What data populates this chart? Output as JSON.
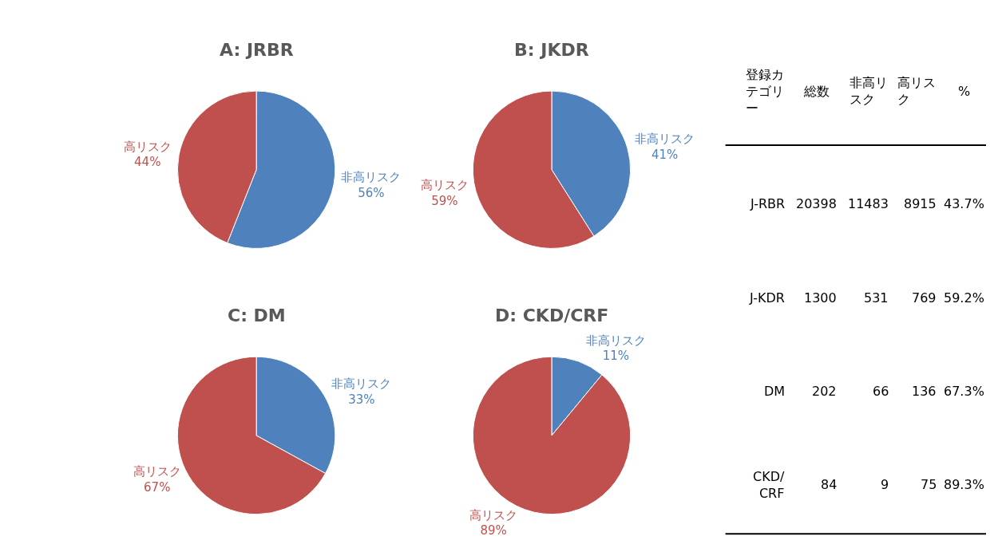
{
  "chart_data": [
    {
      "type": "pie",
      "title": "A: JRBR",
      "categories": [
        "非高リスク",
        "高リスク"
      ],
      "values": [
        56,
        44
      ],
      "value_labels": [
        "56%",
        "44%"
      ],
      "colors": [
        "#4f81bd",
        "#c0504d"
      ]
    },
    {
      "type": "pie",
      "title": "B: JKDR",
      "categories": [
        "非高リスク",
        "高リスク"
      ],
      "values": [
        41,
        59
      ],
      "value_labels": [
        "41%",
        "59%"
      ],
      "colors": [
        "#4f81bd",
        "#c0504d"
      ]
    },
    {
      "type": "pie",
      "title": "C: DM",
      "categories": [
        "非高リスク",
        "高リスク"
      ],
      "values": [
        33,
        67
      ],
      "value_labels": [
        "33%",
        "67%"
      ],
      "colors": [
        "#4f81bd",
        "#c0504d"
      ]
    },
    {
      "type": "pie",
      "title": "D: CKD/CRF",
      "categories": [
        "非高リスク",
        "高リスク"
      ],
      "values": [
        11,
        89
      ],
      "value_labels": [
        "11%",
        "89%"
      ],
      "colors": [
        "#4f81bd",
        "#c0504d"
      ]
    },
    {
      "type": "other",
      "categories": [
        "登録カテゴリー",
        "総数",
        "非高リスク",
        "高リスク",
        "%"
      ],
      "y_categories": [
        "J-RBR",
        "J-KDR",
        "DM",
        "CKD/CRF"
      ],
      "cell_labels": [
        [
          "20398",
          "11483",
          "8915",
          "43.7%"
        ],
        [
          "1300",
          "531",
          "769",
          "59.2%"
        ],
        [
          "202",
          "66",
          "136",
          "67.3%"
        ],
        [
          "84",
          "9",
          "75",
          "89.3%"
        ]
      ]
    }
  ]
}
